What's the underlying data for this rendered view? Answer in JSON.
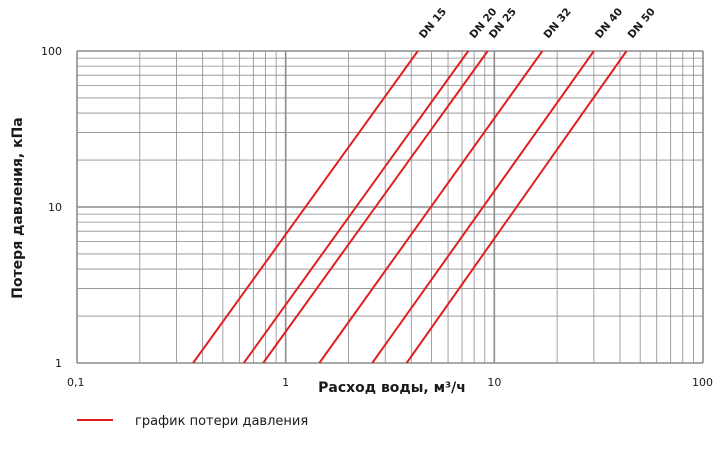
{
  "chart_data": {
    "type": "line",
    "xlabel": "Расход воды, м³/ч",
    "ylabel": "Потеря давления, кПа",
    "x_scale": "log",
    "y_scale": "log",
    "xlim": [
      0.1,
      100
    ],
    "ylim": [
      1,
      100
    ],
    "x_ticks": [
      {
        "value": 0.1,
        "label": "0,1"
      },
      {
        "value": 1,
        "label": "1"
      },
      {
        "value": 10,
        "label": "10"
      },
      {
        "value": 100,
        "label": "100"
      }
    ],
    "y_ticks": [
      {
        "value": 1,
        "label": "1"
      },
      {
        "value": 10,
        "label": "10"
      },
      {
        "value": 100,
        "label": "100"
      }
    ],
    "grid": true,
    "line_color": "#e02020",
    "grid_color": "#8c8c8c",
    "legend": {
      "label": "график потери давления",
      "placement": "bottom-left"
    },
    "series": [
      {
        "name": "DN 15",
        "points": [
          [
            0.36,
            1
          ],
          [
            4.3,
            100
          ]
        ]
      },
      {
        "name": "DN 20",
        "points": [
          [
            0.63,
            1
          ],
          [
            7.5,
            100
          ]
        ]
      },
      {
        "name": "DN 25",
        "points": [
          [
            0.78,
            1
          ],
          [
            9.3,
            100
          ]
        ]
      },
      {
        "name": "DN 32",
        "points": [
          [
            1.45,
            1
          ],
          [
            17,
            100
          ]
        ]
      },
      {
        "name": "DN 40",
        "points": [
          [
            2.6,
            1
          ],
          [
            30,
            100
          ]
        ]
      },
      {
        "name": "DN 50",
        "points": [
          [
            3.8,
            1
          ],
          [
            43,
            100
          ]
        ]
      }
    ]
  }
}
